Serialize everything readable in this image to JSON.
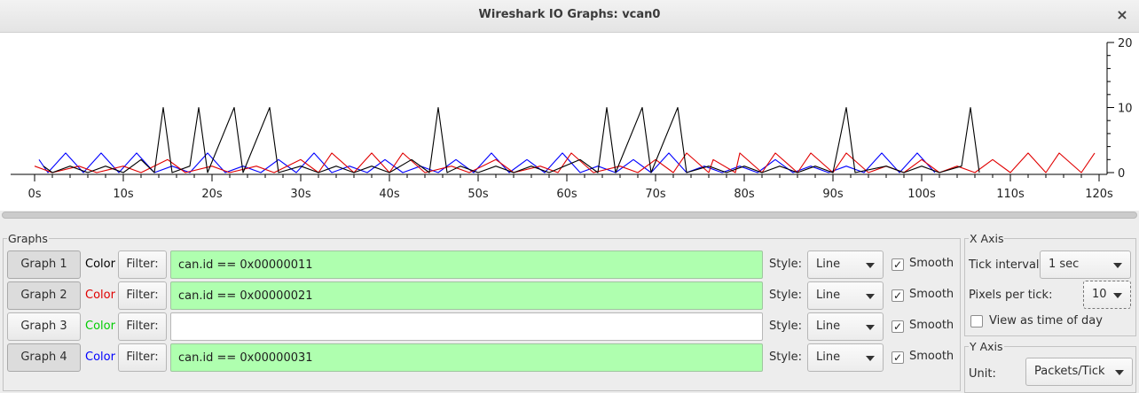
{
  "window": {
    "title": "Wireshark IO Graphs: vcan0",
    "close_glyph": "×"
  },
  "chart_data": {
    "type": "line",
    "xlabel": "",
    "ylabel": "",
    "x_ticks": [
      "0s",
      "10s",
      "20s",
      "30s",
      "40s",
      "50s",
      "60s",
      "70s",
      "80s",
      "90s",
      "100s",
      "110s",
      "120s"
    ],
    "xlim": [
      0,
      120
    ],
    "y_ticks": [
      "0",
      "10",
      "20"
    ],
    "ylim": [
      0,
      20
    ],
    "y_axis_position": "right",
    "grid": false,
    "series": [
      {
        "color": "#0000ff",
        "points": [
          [
            0.5,
            2
          ],
          [
            1.5,
            0
          ],
          [
            3.5,
            3
          ],
          [
            5.5,
            0
          ],
          [
            7.5,
            3
          ],
          [
            9.5,
            0
          ],
          [
            11.5,
            3
          ],
          [
            13.5,
            0
          ],
          [
            15.5,
            1
          ],
          [
            17.5,
            0
          ],
          [
            19.5,
            3
          ],
          [
            21.5,
            0
          ],
          [
            23.5,
            1
          ],
          [
            25.5,
            0
          ],
          [
            27.5,
            2
          ],
          [
            29.5,
            0
          ],
          [
            31.5,
            3
          ],
          [
            33.5,
            0
          ],
          [
            35.5,
            1
          ],
          [
            37.5,
            0
          ],
          [
            39.5,
            2
          ],
          [
            41.5,
            0
          ],
          [
            43.5,
            1
          ],
          [
            45.5,
            0
          ],
          [
            47.5,
            2
          ],
          [
            49.5,
            0
          ],
          [
            51.5,
            3
          ],
          [
            53.5,
            0
          ],
          [
            55.5,
            2
          ],
          [
            57.5,
            0
          ],
          [
            59.5,
            3
          ],
          [
            61.5,
            0
          ],
          [
            63.5,
            1
          ],
          [
            65.5,
            0
          ],
          [
            67.5,
            2
          ],
          [
            69.5,
            0
          ],
          [
            71.5,
            3
          ],
          [
            73.5,
            0
          ],
          [
            75.5,
            1
          ],
          [
            77.5,
            0
          ],
          [
            79.5,
            1
          ],
          [
            81.5,
            0
          ],
          [
            83.5,
            2
          ],
          [
            85.5,
            0
          ],
          [
            87.5,
            1
          ],
          [
            89.5,
            0
          ],
          [
            91.5,
            1
          ],
          [
            93.5,
            0
          ],
          [
            95.5,
            3
          ],
          [
            97.5,
            0
          ],
          [
            99.5,
            3
          ],
          [
            101.5,
            0
          ]
        ]
      },
      {
        "color": "#e00000",
        "points": [
          [
            0,
            1
          ],
          [
            2,
            0
          ],
          [
            5,
            1
          ],
          [
            7,
            0
          ],
          [
            10,
            1
          ],
          [
            12,
            0
          ],
          [
            15,
            2
          ],
          [
            17,
            0
          ],
          [
            20,
            1
          ],
          [
            22,
            0
          ],
          [
            25,
            1
          ],
          [
            27,
            0
          ],
          [
            30,
            2
          ],
          [
            32,
            0
          ],
          [
            33.5,
            3
          ],
          [
            36,
            0
          ],
          [
            38,
            3
          ],
          [
            40,
            0
          ],
          [
            41.5,
            3
          ],
          [
            44,
            0
          ],
          [
            47,
            1
          ],
          [
            49,
            0
          ],
          [
            52,
            2
          ],
          [
            54,
            0
          ],
          [
            57,
            1
          ],
          [
            59,
            0
          ],
          [
            60.5,
            3
          ],
          [
            63,
            0
          ],
          [
            66,
            1
          ],
          [
            68,
            0
          ],
          [
            70,
            2
          ],
          [
            72,
            0
          ],
          [
            73.5,
            3
          ],
          [
            76,
            0
          ],
          [
            76.5,
            2
          ],
          [
            79,
            0
          ],
          [
            79.5,
            3
          ],
          [
            82,
            0
          ],
          [
            83.5,
            3
          ],
          [
            86,
            0
          ],
          [
            87.5,
            3
          ],
          [
            90,
            0
          ],
          [
            91.5,
            3
          ],
          [
            94,
            0
          ],
          [
            96,
            1
          ],
          [
            98,
            0
          ],
          [
            100,
            2
          ],
          [
            102,
            0
          ],
          [
            104,
            1
          ],
          [
            106,
            0
          ],
          [
            108,
            2
          ],
          [
            110,
            0
          ],
          [
            112,
            3
          ],
          [
            114,
            0
          ],
          [
            115.5,
            3
          ],
          [
            118,
            0
          ],
          [
            119.5,
            3
          ]
        ]
      },
      {
        "color": "#000000",
        "points": [
          [
            1,
            1
          ],
          [
            2,
            0
          ],
          [
            4,
            1
          ],
          [
            6,
            0
          ],
          [
            8,
            1
          ],
          [
            10,
            0
          ],
          [
            12,
            2
          ],
          [
            13.5,
            0
          ],
          [
            14.5,
            10
          ],
          [
            15.5,
            0
          ],
          [
            17.5,
            1
          ],
          [
            18.5,
            10
          ],
          [
            19.5,
            0
          ],
          [
            22.5,
            10
          ],
          [
            23.5,
            0
          ],
          [
            26.5,
            10
          ],
          [
            27.5,
            0
          ],
          [
            30,
            1
          ],
          [
            32,
            0
          ],
          [
            34,
            1
          ],
          [
            36,
            0
          ],
          [
            38,
            1
          ],
          [
            40,
            0
          ],
          [
            42.5,
            2
          ],
          [
            44.5,
            0
          ],
          [
            45.5,
            10
          ],
          [
            46.5,
            0
          ],
          [
            48,
            1
          ],
          [
            50,
            0
          ],
          [
            52,
            1
          ],
          [
            54,
            0
          ],
          [
            56,
            1
          ],
          [
            58,
            0
          ],
          [
            61.5,
            2
          ],
          [
            63.5,
            0
          ],
          [
            64.5,
            10
          ],
          [
            65.5,
            0
          ],
          [
            68.5,
            10
          ],
          [
            69.5,
            0
          ],
          [
            72.5,
            10
          ],
          [
            73.5,
            0
          ],
          [
            76,
            1
          ],
          [
            78,
            0
          ],
          [
            80,
            1
          ],
          [
            82,
            0
          ],
          [
            84,
            1
          ],
          [
            86,
            0
          ],
          [
            88,
            1
          ],
          [
            90,
            0
          ],
          [
            91.5,
            10
          ],
          [
            92.5,
            0
          ],
          [
            96,
            1
          ],
          [
            98,
            0
          ],
          [
            100,
            1
          ],
          [
            102,
            0
          ],
          [
            104.5,
            1
          ],
          [
            105.5,
            10
          ],
          [
            106.5,
            0
          ]
        ]
      }
    ]
  },
  "graphs_panel": {
    "legend": "Graphs",
    "color_label": "Color",
    "filter_label": "Filter:",
    "style_label": "Style:",
    "smooth_label": "Smooth",
    "rows": [
      {
        "button": "Graph 1",
        "color": "#000000",
        "filter": "can.id == 0x00000011",
        "style": "Line",
        "smooth": true,
        "pressed": true
      },
      {
        "button": "Graph 2",
        "color": "#e00000",
        "filter": "can.id == 0x00000021",
        "style": "Line",
        "smooth": true,
        "pressed": true
      },
      {
        "button": "Graph 3",
        "color": "#00cc00",
        "filter": "",
        "style": "Line",
        "smooth": true,
        "pressed": false
      },
      {
        "button": "Graph 4",
        "color": "#0000ff",
        "filter": "can.id == 0x00000031",
        "style": "Line",
        "smooth": true,
        "pressed": true
      }
    ]
  },
  "x_axis_panel": {
    "legend": "X Axis",
    "tick_interval_label": "Tick interval:",
    "tick_interval_value": "1 sec",
    "pixels_per_tick_label": "Pixels per tick:",
    "pixels_per_tick_value": "10",
    "view_time_of_day_label": "View as time of day",
    "view_time_of_day_checked": false
  },
  "y_axis_panel": {
    "legend": "Y Axis",
    "unit_label": "Unit:",
    "unit_value": "Packets/Tick"
  }
}
